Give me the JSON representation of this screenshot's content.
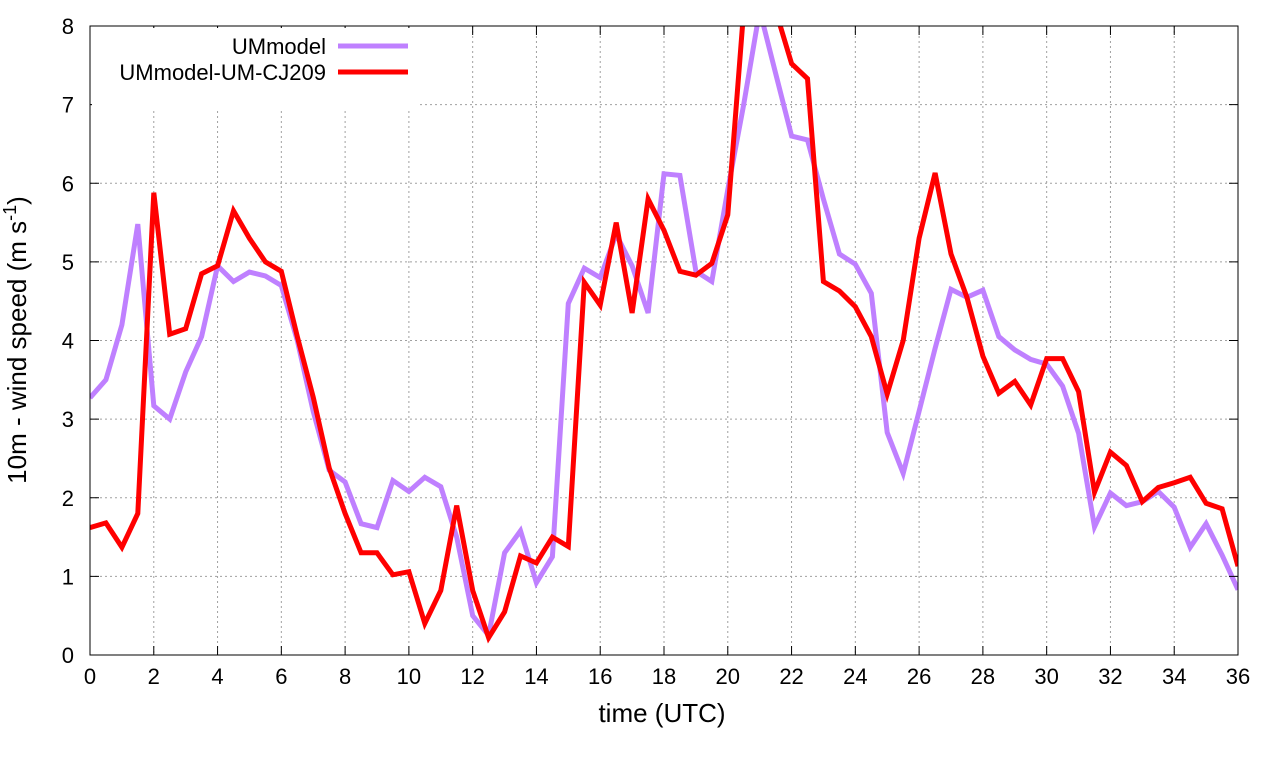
{
  "chart_data": {
    "type": "line",
    "xlabel": "time (UTC)",
    "ylabel": {
      "main": "10m - wind speed  (m s",
      "superscript": "-1",
      "close": ")"
    },
    "xlim": [
      0,
      36
    ],
    "ylim": [
      0,
      8
    ],
    "xticks": [
      0,
      2,
      4,
      6,
      8,
      10,
      12,
      14,
      16,
      18,
      20,
      22,
      24,
      26,
      28,
      30,
      32,
      34,
      36
    ],
    "yticks": [
      0,
      1,
      2,
      3,
      4,
      5,
      6,
      7,
      8
    ],
    "grid": true,
    "legend_position": "top-left",
    "x": [
      0,
      0.5,
      1,
      1.5,
      2,
      2.5,
      3,
      3.5,
      4,
      4.5,
      5,
      5.5,
      6,
      6.5,
      7,
      7.5,
      8,
      8.5,
      9,
      9.5,
      10,
      10.5,
      11,
      11.5,
      12,
      12.5,
      13,
      13.5,
      14,
      14.5,
      15,
      15.5,
      16,
      16.5,
      17,
      17.5,
      18,
      18.5,
      19,
      19.5,
      20,
      20.5,
      21,
      21.5,
      22,
      22.5,
      23,
      23.5,
      24,
      24.5,
      25,
      25.5,
      26,
      26.5,
      27,
      27.5,
      28,
      28.5,
      29,
      29.5,
      30,
      30.5,
      31,
      31.5,
      32,
      32.5,
      33,
      33.5,
      34,
      34.5,
      35,
      35.5,
      36
    ],
    "series": [
      {
        "name": "UMmodel",
        "color": "#bf80ff",
        "values": [
          3.27,
          3.5,
          4.2,
          5.48,
          3.17,
          3.0,
          3.6,
          4.05,
          4.95,
          4.75,
          4.87,
          4.82,
          4.7,
          4.0,
          3.1,
          2.35,
          2.2,
          1.67,
          1.62,
          2.22,
          2.08,
          2.26,
          2.14,
          1.5,
          0.5,
          0.25,
          1.3,
          1.58,
          0.92,
          1.25,
          4.47,
          4.92,
          4.8,
          5.35,
          4.95,
          4.35,
          6.12,
          6.1,
          4.88,
          4.75,
          5.92,
          7.0,
          8.2,
          7.4,
          6.6,
          6.55,
          5.8,
          5.1,
          4.97,
          4.6,
          2.83,
          2.31,
          3.1,
          3.9,
          4.65,
          4.55,
          4.64,
          4.05,
          3.88,
          3.76,
          3.7,
          3.42,
          2.82,
          1.63,
          2.06,
          1.9,
          1.95,
          2.08,
          1.88,
          1.37,
          1.67,
          1.27,
          0.83
        ]
      },
      {
        "name": "UMmodel-UM-CJ209",
        "color": "#ff0000",
        "values": [
          1.62,
          1.68,
          1.37,
          1.8,
          5.88,
          4.08,
          4.15,
          4.85,
          4.95,
          5.65,
          5.3,
          5.0,
          4.88,
          4.05,
          3.28,
          2.38,
          1.8,
          1.3,
          1.3,
          1.02,
          1.06,
          0.4,
          0.82,
          1.9,
          0.82,
          0.22,
          0.55,
          1.26,
          1.17,
          1.5,
          1.38,
          4.74,
          4.45,
          5.5,
          4.35,
          5.8,
          5.4,
          4.88,
          4.83,
          4.98,
          5.6,
          8.2,
          8.2,
          8.2,
          7.52,
          7.33,
          4.75,
          4.63,
          4.43,
          4.05,
          3.32,
          4.0,
          5.3,
          6.13,
          5.1,
          4.55,
          3.8,
          3.33,
          3.48,
          3.18,
          3.77,
          3.77,
          3.35,
          2.07,
          2.58,
          2.41,
          1.95,
          2.13,
          2.19,
          2.26,
          1.93,
          1.86,
          1.13
        ]
      }
    ]
  }
}
